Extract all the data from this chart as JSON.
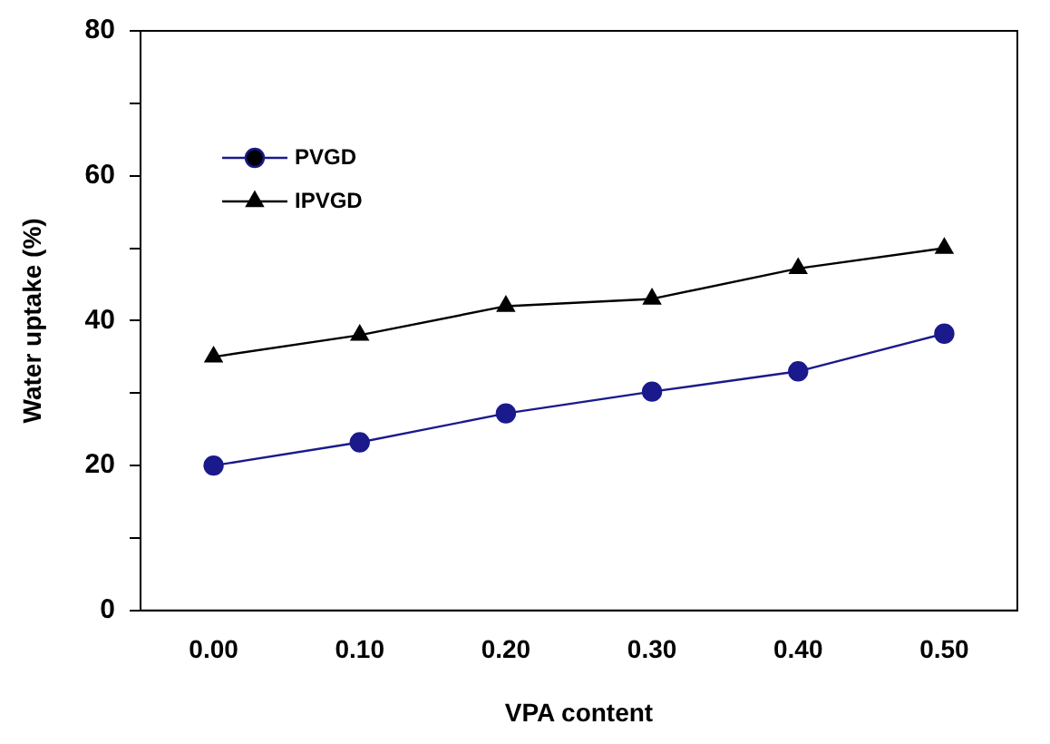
{
  "chart_data": {
    "type": "line",
    "xlabel": "VPA content",
    "ylabel": "Water uptake (%)",
    "categories": [
      "0.00",
      "0.10",
      "0.20",
      "0.30",
      "0.40",
      "0.50"
    ],
    "series": [
      {
        "name": "PVGD",
        "color": "#1a1a8c",
        "marker": "circle",
        "values": [
          20,
          23.2,
          27.2,
          30.2,
          33,
          38.2
        ]
      },
      {
        "name": "IPVGD",
        "color": "#000000",
        "marker": "triangle",
        "values": [
          35,
          38,
          42,
          43,
          47.2,
          50
        ]
      }
    ],
    "ylim": [
      0,
      80
    ],
    "yticks": [
      0,
      {
        "value": 10,
        "label": null
      },
      20,
      {
        "value": 30,
        "label": null
      },
      40,
      {
        "value": 50,
        "label": null
      },
      60,
      {
        "value": 70,
        "label": null
      },
      80
    ],
    "grid": false,
    "legend": "top left",
    "line_style": "solid"
  }
}
